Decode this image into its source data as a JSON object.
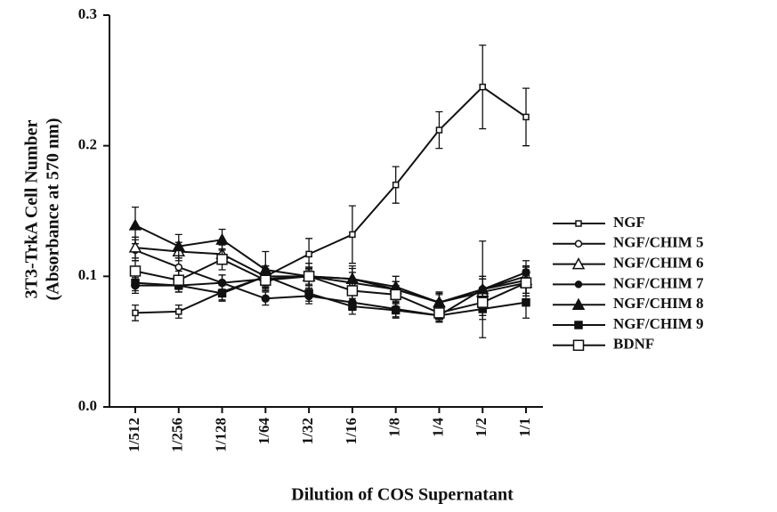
{
  "chart_data": {
    "type": "line",
    "xlabel": "Dilution of COS Supernatant",
    "ylabel": [
      "3T3-TrkA Cell Number",
      "(Absorbance at 570 nm)"
    ],
    "categories": [
      "1/512",
      "1/256",
      "1/128",
      "1/64",
      "1/32",
      "1/16",
      "1/8",
      "1/4",
      "1/2",
      "1/1"
    ],
    "ylim": [
      0,
      0.3
    ],
    "yticks": [
      {
        "value": 0,
        "label": "0.0"
      },
      0.1,
      0.2,
      0.3
    ],
    "legend": "right",
    "series": [
      {
        "name": "NGF",
        "color": "#111111",
        "marker": "square-open-small",
        "values": [
          0.072,
          0.073,
          0.088,
          0.1,
          0.117,
          0.132,
          0.17,
          0.212,
          0.245,
          0.222
        ],
        "errors": [
          0.006,
          0.005,
          0.006,
          0.008,
          0.012,
          0.022,
          0.014,
          0.014,
          0.032,
          0.022
        ]
      },
      {
        "name": "NGF/CHIM 5",
        "color": "#111111",
        "marker": "circle-open",
        "values": [
          0.12,
          0.107,
          0.095,
          0.098,
          0.1,
          0.095,
          0.09,
          0.08,
          0.09,
          0.1
        ],
        "errors": [
          0.008,
          0.007,
          0.006,
          0.008,
          0.007,
          0.008,
          0.006,
          0.007,
          0.01,
          0.008
        ]
      },
      {
        "name": "NGF/CHIM 6",
        "color": "#111111",
        "marker": "triangle-open",
        "values": [
          0.122,
          0.119,
          0.117,
          0.1,
          0.1,
          0.098,
          0.09,
          0.08,
          0.088,
          0.095
        ],
        "errors": [
          0.008,
          0.007,
          0.007,
          0.008,
          0.006,
          0.008,
          0.006,
          0.006,
          0.01,
          0.008
        ]
      },
      {
        "name": "NGF/CHIM 7",
        "color": "#111111",
        "marker": "circle",
        "values": [
          0.093,
          0.093,
          0.095,
          0.083,
          0.085,
          0.08,
          0.075,
          0.07,
          0.09,
          0.103
        ],
        "errors": [
          0.006,
          0.005,
          0.006,
          0.005,
          0.006,
          0.006,
          0.006,
          0.005,
          0.008,
          0.009
        ]
      },
      {
        "name": "NGF/CHIM 8",
        "color": "#111111",
        "marker": "triangle",
        "values": [
          0.139,
          0.123,
          0.128,
          0.105,
          0.1,
          0.098,
          0.092,
          0.08,
          0.09,
          0.097
        ],
        "errors": [
          0.014,
          0.009,
          0.008,
          0.014,
          0.01,
          0.01,
          0.008,
          0.008,
          0.037,
          0.01
        ]
      },
      {
        "name": "NGF/CHIM 9",
        "color": "#111111",
        "marker": "square",
        "values": [
          0.095,
          0.093,
          0.087,
          0.1,
          0.087,
          0.077,
          0.074,
          0.07,
          0.075,
          0.08
        ],
        "errors": [
          0.006,
          0.005,
          0.006,
          0.008,
          0.006,
          0.006,
          0.006,
          0.005,
          0.008,
          0.012
        ]
      },
      {
        "name": "BDNF",
        "color": "#111111",
        "marker": "square-open",
        "values": [
          0.104,
          0.097,
          0.113,
          0.097,
          0.1,
          0.089,
          0.086,
          0.072,
          0.08,
          0.095
        ],
        "errors": [
          0.008,
          0.007,
          0.008,
          0.008,
          0.007,
          0.008,
          0.007,
          0.006,
          0.01,
          0.01
        ]
      }
    ]
  }
}
